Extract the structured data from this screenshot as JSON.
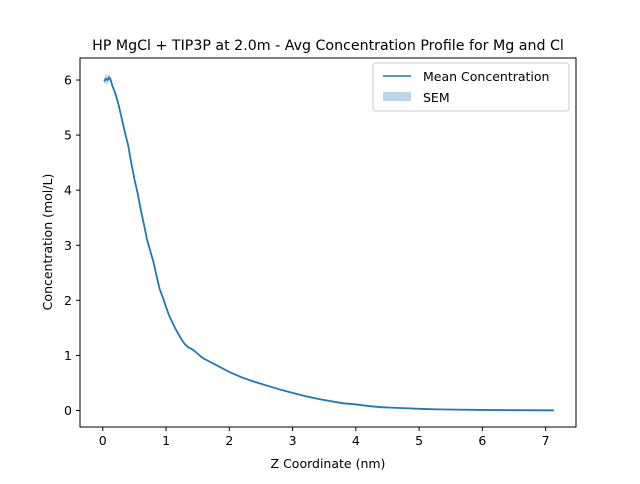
{
  "chart_data": {
    "type": "line",
    "title": "HP MgCl + TIP3P at 2.0m - Avg Concentration Profile for Mg and Cl",
    "xlabel": "Z Coordinate (nm)",
    "ylabel": "Concentration (mol/L)",
    "xlim": [
      -0.36,
      7.48
    ],
    "ylim": [
      -0.3,
      6.4
    ],
    "x_ticks": [
      0,
      1,
      2,
      3,
      4,
      5,
      6,
      7
    ],
    "y_ticks": [
      0,
      1,
      2,
      3,
      4,
      5,
      6
    ],
    "grid": false,
    "legend_position": "upper right",
    "legend": {
      "line_label": "Mean Concentration",
      "band_label": "SEM"
    },
    "series": [
      {
        "name": "Mean Concentration",
        "color": "#1f77b4",
        "x": [
          0.02,
          0.05,
          0.08,
          0.1,
          0.12,
          0.15,
          0.2,
          0.25,
          0.3,
          0.35,
          0.4,
          0.45,
          0.5,
          0.55,
          0.6,
          0.65,
          0.7,
          0.75,
          0.8,
          0.85,
          0.9,
          0.95,
          1.0,
          1.05,
          1.1,
          1.15,
          1.2,
          1.25,
          1.3,
          1.35,
          1.4,
          1.45,
          1.5,
          1.55,
          1.6,
          1.7,
          1.8,
          1.9,
          2.0,
          2.2,
          2.4,
          2.6,
          2.8,
          3.0,
          3.2,
          3.4,
          3.6,
          3.8,
          4.0,
          4.2,
          4.4,
          4.6,
          4.8,
          5.0,
          5.3,
          5.6,
          6.0,
          6.5,
          7.0,
          7.13
        ],
        "y": [
          5.98,
          6.02,
          6.0,
          6.05,
          6.02,
          5.9,
          5.75,
          5.55,
          5.3,
          5.05,
          4.82,
          4.5,
          4.2,
          3.95,
          3.65,
          3.38,
          3.1,
          2.9,
          2.7,
          2.45,
          2.2,
          2.05,
          1.88,
          1.72,
          1.6,
          1.48,
          1.38,
          1.28,
          1.2,
          1.15,
          1.12,
          1.08,
          1.03,
          0.98,
          0.94,
          0.88,
          0.82,
          0.76,
          0.7,
          0.6,
          0.52,
          0.45,
          0.38,
          0.32,
          0.26,
          0.21,
          0.17,
          0.13,
          0.11,
          0.08,
          0.06,
          0.05,
          0.04,
          0.03,
          0.02,
          0.015,
          0.01,
          0.005,
          0.003,
          0.003
        ]
      }
    ],
    "sem_band": {
      "name": "SEM",
      "color": "#1f77b4",
      "opacity": 0.3,
      "x": [
        0.02,
        0.05,
        0.08,
        0.1,
        0.12,
        0.15,
        0.2
      ],
      "upper": [
        6.02,
        6.12,
        6.08,
        6.1,
        6.05,
        5.93,
        5.77
      ],
      "lower": [
        5.94,
        5.94,
        5.92,
        6.0,
        5.99,
        5.87,
        5.73
      ]
    }
  }
}
